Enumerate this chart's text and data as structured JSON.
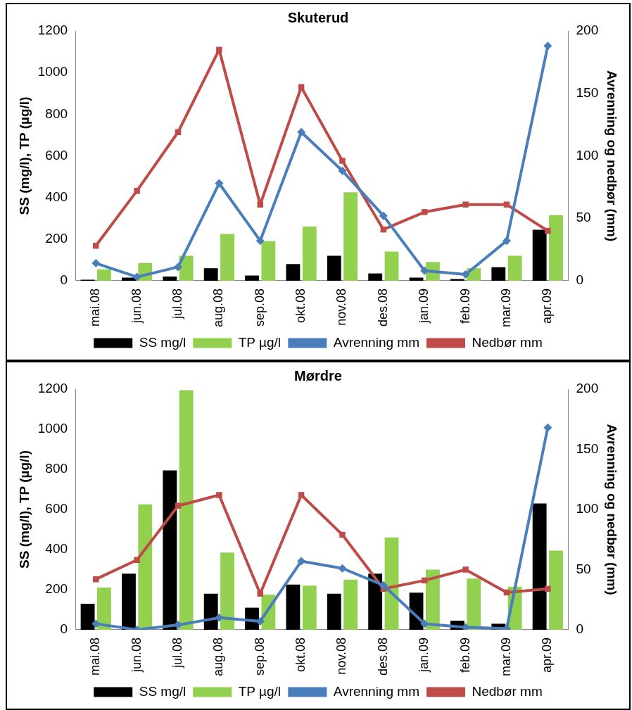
{
  "chart_data": [
    {
      "type": "bar",
      "title": "Skuterud",
      "ylabel": "SS (mg/l), TP (µg/l)",
      "y2label": "Avrenning og nedbør (mm)",
      "categories": [
        "mai.08",
        "jun.08",
        "jul.08",
        "aug.08",
        "sep.08",
        "okt.08",
        "nov.08",
        "des.08",
        "jan.09",
        "feb.09",
        "mar.09",
        "apr.09"
      ],
      "series": [
        {
          "name": "SS mg/l",
          "color": "#000000",
          "values": [
            5,
            15,
            20,
            60,
            25,
            80,
            120,
            35,
            15,
            8,
            65,
            245
          ]
        },
        {
          "name": "TP µg/l",
          "color": "#92d050",
          "values": [
            55,
            85,
            120,
            225,
            190,
            260,
            425,
            140,
            90,
            60,
            120,
            315
          ]
        },
        {
          "name": "Avrenning mm",
          "type": "line",
          "axis": "y2",
          "marker": "diamond",
          "color": "#4a7ebb",
          "values": [
            14,
            3,
            11,
            78,
            32,
            119,
            88,
            52,
            8,
            5,
            32,
            188
          ]
        },
        {
          "name": "Nedbør mm",
          "type": "line",
          "axis": "y2",
          "marker": "square",
          "color": "#be4b48",
          "values": [
            28,
            72,
            119,
            185,
            61,
            155,
            96,
            41,
            55,
            61,
            61,
            40
          ]
        }
      ],
      "ylim": [
        0,
        1200
      ],
      "yticks": [
        0,
        200,
        400,
        600,
        800,
        1000,
        1200
      ],
      "y2lim": [
        0,
        200
      ],
      "y2ticks": [
        0,
        50,
        100,
        150,
        200
      ],
      "legend": "bottom",
      "grid": false
    },
    {
      "type": "bar",
      "title": "Mørdre",
      "ylabel": "SS (mg/l), TP (µg/l)",
      "y2label": "Avrenning og nedbør (mm)",
      "categories": [
        "mai.08",
        "jun.08",
        "jul.08",
        "aug.08",
        "sep.08",
        "okt.08",
        "nov.08",
        "des.08",
        "jan.09",
        "feb.09",
        "mar.09",
        "apr.09"
      ],
      "series": [
        {
          "name": "SS mg/l",
          "color": "#000000",
          "values": [
            130,
            280,
            795,
            180,
            110,
            225,
            180,
            280,
            185,
            45,
            30,
            630
          ]
        },
        {
          "name": "TP µg/l",
          "color": "#92d050",
          "values": [
            210,
            625,
            1195,
            385,
            175,
            220,
            250,
            460,
            300,
            255,
            215,
            395
          ]
        },
        {
          "name": "Avrenning mm",
          "type": "line",
          "axis": "y2",
          "marker": "diamond",
          "color": "#4a7ebb",
          "values": [
            5,
            0,
            4,
            10,
            7,
            57,
            51,
            37,
            5,
            2,
            1,
            168
          ]
        },
        {
          "name": "Nedbør mm",
          "type": "line",
          "axis": "y2",
          "marker": "square",
          "color": "#be4b48",
          "values": [
            42,
            58,
            103,
            112,
            30,
            112,
            79,
            34,
            41,
            50,
            31,
            34
          ]
        }
      ],
      "ylim": [
        0,
        1200
      ],
      "yticks": [
        0,
        200,
        400,
        600,
        800,
        1000,
        1200
      ],
      "y2lim": [
        0,
        200
      ],
      "y2ticks": [
        0,
        50,
        100,
        150,
        200
      ],
      "legend": "bottom",
      "grid": false
    }
  ]
}
